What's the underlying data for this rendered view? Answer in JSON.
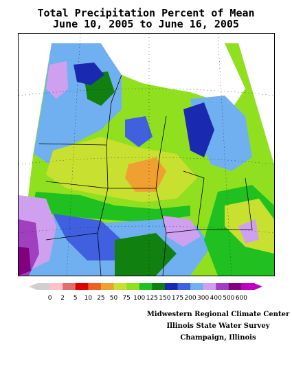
{
  "title": {
    "line1": "Total Precipitation Percent of Mean",
    "line2": "June 10, 2005 to June 16, 2005"
  },
  "legend": {
    "labels": [
      "0",
      "2",
      "5",
      "10",
      "25",
      "50",
      "75",
      "100",
      "125",
      "150",
      "175",
      "200",
      "300",
      "400",
      "500",
      "600"
    ],
    "colors": [
      "#d0d0d0",
      "#ffc0cb",
      "#e07070",
      "#e00000",
      "#f06020",
      "#f0a030",
      "#c8e030",
      "#90e020",
      "#20c020",
      "#108010",
      "#1a2ab0",
      "#4060e0",
      "#70b0f0",
      "#d0a0f0",
      "#a040c0",
      "#800080",
      "#c000c0"
    ]
  },
  "credits": {
    "line1": "Midwestern Regional Climate Center",
    "line2": "Illinois State Water Survey",
    "line3": "Champaign, Illinois"
  },
  "map": {
    "region": "Midwest",
    "field_palette": {
      "sky": "#70b0f0",
      "blue": "#4060e0",
      "navy": "#1a2ab0",
      "lightgreen": "#90e020",
      "green": "#20c020",
      "darkgreen": "#108010",
      "yellow": "#c8e030",
      "orange": "#f0a030",
      "lavender": "#d0a0f0",
      "magenta": "#a040c0",
      "purple": "#800080"
    }
  }
}
